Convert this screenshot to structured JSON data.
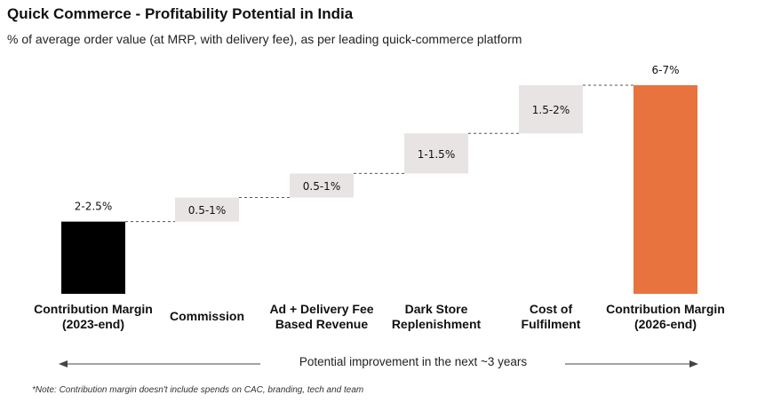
{
  "title": "Quick Commerce - Profitability Potential in India",
  "subtitle": "% of average order value (at MRP, with delivery fee), as per leading quick-commerce platform",
  "chart_data": {
    "type": "bar",
    "subtype": "waterfall",
    "categories": [
      [
        "Contribution Margin",
        "(2023-end)"
      ],
      [
        "Commission"
      ],
      [
        "Ad + Delivery Fee",
        "Based Revenue"
      ],
      [
        "Dark Store",
        "Replenishment"
      ],
      [
        "Cost of",
        "Fulfilment"
      ],
      [
        "Contribution Margin",
        "(2026-end)"
      ]
    ],
    "labels": [
      "2-2.5%",
      "0.5-1%",
      "0.5-1%",
      "1-1.5%",
      "1.5-2%",
      "6-7%"
    ],
    "bars": [
      {
        "kind": "total",
        "start": 0,
        "end": 2.25
      },
      {
        "kind": "increment",
        "start": 2.25,
        "end": 3.0
      },
      {
        "kind": "increment",
        "start": 3.0,
        "end": 3.75
      },
      {
        "kind": "increment",
        "start": 3.75,
        "end": 5.0
      },
      {
        "kind": "increment",
        "start": 5.0,
        "end": 6.5
      },
      {
        "kind": "total",
        "start": 0,
        "end": 6.5
      }
    ],
    "ylim": [
      0,
      6.5
    ],
    "colors": {
      "start_total": "#000000",
      "increment": "#e8e4e3",
      "end_total": "#e8733e",
      "connector": "#555555"
    }
  },
  "footer": {
    "arrow_text": "Potential improvement in the next ~3 years",
    "note": "*Note: Contribution margin doesn't include spends on CAC, branding, tech and team"
  }
}
